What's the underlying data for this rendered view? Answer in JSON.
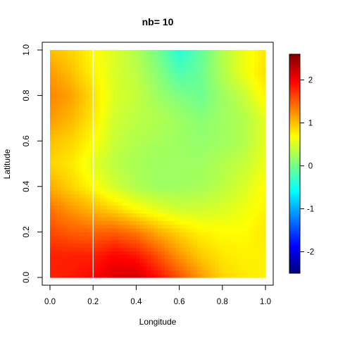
{
  "chart_data": {
    "type": "heatmap",
    "title": "nb= 10",
    "xlabel": "Longitude",
    "ylabel": "Latitude",
    "xlim": [
      0,
      1
    ],
    "ylim": [
      0,
      1
    ],
    "x_ticks": [
      "0.0",
      "0.2",
      "0.4",
      "0.6",
      "0.8",
      "1.0"
    ],
    "y_ticks": [
      "0.0",
      "0.2",
      "0.4",
      "0.6",
      "0.8",
      "1.0"
    ],
    "x_tick_values": [
      0,
      0.2,
      0.4,
      0.6,
      0.8,
      1.0
    ],
    "y_tick_values": [
      0,
      0.2,
      0.4,
      0.6,
      0.8,
      1.0
    ],
    "colorbar": {
      "range": [
        -2.5,
        2.6
      ],
      "ticks": [
        "-2",
        "-1",
        "0",
        "1",
        "2"
      ],
      "tick_values": [
        -2,
        -1,
        0,
        1,
        2
      ],
      "colormap": [
        "#00007F",
        "#0000FF",
        "#007FFF",
        "#00FFFF",
        "#7FFF7F",
        "#FFFF00",
        "#FF7F00",
        "#FF0000",
        "#7F0000"
      ]
    },
    "reference_line": {
      "orientation": "vertical",
      "x": 0.2,
      "color": "#FFFFFF"
    },
    "grid": false,
    "z_grid": {
      "x": [
        0,
        0.1,
        0.2,
        0.3,
        0.4,
        0.5,
        0.6,
        0.7,
        0.8,
        0.9,
        1.0
      ],
      "y": [
        0,
        0.1,
        0.2,
        0.3,
        0.4,
        0.5,
        0.6,
        0.7,
        0.8,
        0.9,
        1.0
      ],
      "values": [
        [
          1.8,
          1.85,
          1.95,
          2.15,
          2.2,
          1.9,
          1.55,
          1.2,
          0.9,
          0.8,
          0.75
        ],
        [
          1.8,
          1.8,
          1.8,
          1.95,
          1.85,
          1.55,
          1.2,
          0.95,
          0.8,
          0.75,
          0.75
        ],
        [
          1.6,
          1.5,
          1.45,
          1.5,
          1.35,
          1.1,
          0.9,
          0.75,
          0.7,
          0.7,
          0.8
        ],
        [
          1.4,
          1.2,
          1.05,
          0.9,
          0.7,
          0.55,
          0.45,
          0.45,
          0.5,
          0.6,
          0.75
        ],
        [
          1.1,
          0.9,
          0.7,
          0.45,
          0.3,
          0.2,
          0.2,
          0.25,
          0.35,
          0.5,
          0.7
        ],
        [
          0.9,
          0.8,
          0.55,
          0.35,
          0.25,
          0.2,
          0.2,
          0.2,
          0.3,
          0.4,
          0.6
        ],
        [
          1.0,
          0.9,
          0.7,
          0.4,
          0.3,
          0.25,
          0.2,
          0.15,
          0.2,
          0.3,
          0.55
        ],
        [
          1.2,
          1.05,
          0.8,
          0.45,
          0.35,
          0.3,
          0.2,
          0.1,
          0.2,
          0.3,
          0.55
        ],
        [
          1.3,
          1.15,
          0.85,
          0.5,
          0.4,
          0.2,
          0.05,
          -0.05,
          0.2,
          0.4,
          0.75
        ],
        [
          1.2,
          1.0,
          0.75,
          0.5,
          0.35,
          0.1,
          -0.2,
          -0.05,
          0.3,
          0.6,
          0.85
        ],
        [
          1.0,
          0.9,
          0.7,
          0.5,
          0.3,
          0.0,
          -0.4,
          -0.1,
          0.3,
          0.6,
          0.8
        ]
      ]
    }
  }
}
